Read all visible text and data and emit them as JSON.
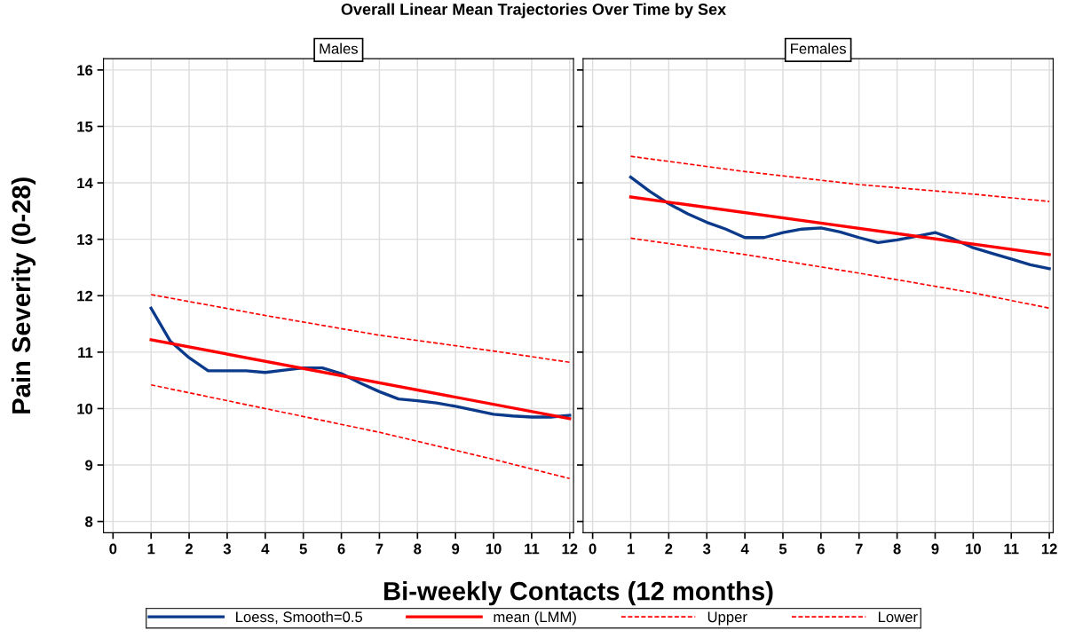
{
  "chart_data": [
    {
      "type": "line",
      "title": "Overall Linear Mean Trajectories Over Time by Sex",
      "subtitle": "Males",
      "xlabel": "Bi-weekly Contacts (12 months)",
      "ylabel": "Pain Severity (0-28)",
      "xlim": [
        -0.25,
        12.1
      ],
      "ylim": [
        7.8,
        16.2
      ],
      "xticks": [
        0,
        1,
        2,
        3,
        4,
        5,
        6,
        7,
        8,
        9,
        10,
        11,
        12
      ],
      "yticks": [
        8,
        9,
        10,
        11,
        12,
        13,
        14,
        15,
        16
      ],
      "grid": true,
      "legend": "bottom",
      "series": [
        {
          "name": "Loess, Smooth=0.5",
          "color": "#0b3a8a",
          "line_style": "solid",
          "x": [
            1,
            1.5,
            2,
            2.5,
            3,
            3.5,
            4,
            4.5,
            5,
            5.5,
            6,
            6.5,
            7,
            7.5,
            8,
            8.5,
            9,
            9.5,
            10,
            10.5,
            11,
            11.5,
            12
          ],
          "values": [
            11.78,
            11.2,
            10.9,
            10.67,
            10.67,
            10.67,
            10.64,
            10.68,
            10.72,
            10.72,
            10.62,
            10.45,
            10.3,
            10.17,
            10.14,
            10.1,
            10.04,
            9.97,
            9.9,
            9.87,
            9.85,
            9.85,
            9.88
          ]
        },
        {
          "name": "mean (LMM)",
          "color": "#ff0000",
          "line_style": "solid",
          "x": [
            1,
            12
          ],
          "values": [
            11.22,
            9.82
          ]
        },
        {
          "name": "Upper",
          "color": "#ff0000",
          "line_style": "dashed",
          "x": [
            1,
            4,
            7,
            10,
            12
          ],
          "values": [
            12.02,
            11.65,
            11.3,
            11.02,
            10.82
          ]
        },
        {
          "name": "Lower",
          "color": "#ff0000",
          "line_style": "dashed",
          "x": [
            1,
            4,
            7,
            10,
            12
          ],
          "values": [
            10.42,
            10.0,
            9.58,
            9.1,
            8.76
          ]
        }
      ]
    },
    {
      "type": "line",
      "subtitle": "Females",
      "xlim": [
        -0.25,
        12.1
      ],
      "ylim": [
        7.8,
        16.2
      ],
      "xticks": [
        0,
        1,
        2,
        3,
        4,
        5,
        6,
        7,
        8,
        9,
        10,
        11,
        12
      ],
      "yticks": [
        8,
        9,
        10,
        11,
        12,
        13,
        14,
        15,
        16
      ],
      "grid": true,
      "tick_labels": "x",
      "series": [
        {
          "color": "#0b3a8a",
          "line_style": "solid",
          "x": [
            1,
            1.5,
            2,
            2.5,
            3,
            3.5,
            4,
            4.5,
            5,
            5.5,
            6,
            6.5,
            7,
            7.5,
            8,
            8.5,
            9,
            9.5,
            10,
            10.5,
            11,
            11.5,
            12
          ],
          "values": [
            14.1,
            13.85,
            13.63,
            13.45,
            13.3,
            13.18,
            13.03,
            13.03,
            13.12,
            13.18,
            13.2,
            13.13,
            13.03,
            12.94,
            12.99,
            13.05,
            13.12,
            13.0,
            12.85,
            12.75,
            12.65,
            12.55,
            12.48
          ]
        },
        {
          "color": "#ff0000",
          "line_style": "solid",
          "x": [
            1,
            12
          ],
          "values": [
            13.75,
            12.73
          ]
        },
        {
          "color": "#ff0000",
          "line_style": "dashed",
          "x": [
            1,
            4,
            7,
            10,
            12
          ],
          "values": [
            14.47,
            14.2,
            13.97,
            13.8,
            13.67
          ]
        },
        {
          "color": "#ff0000",
          "line_style": "dashed",
          "x": [
            1,
            4,
            7,
            10,
            12
          ],
          "values": [
            13.02,
            12.73,
            12.4,
            12.05,
            11.78
          ]
        }
      ]
    }
  ]
}
